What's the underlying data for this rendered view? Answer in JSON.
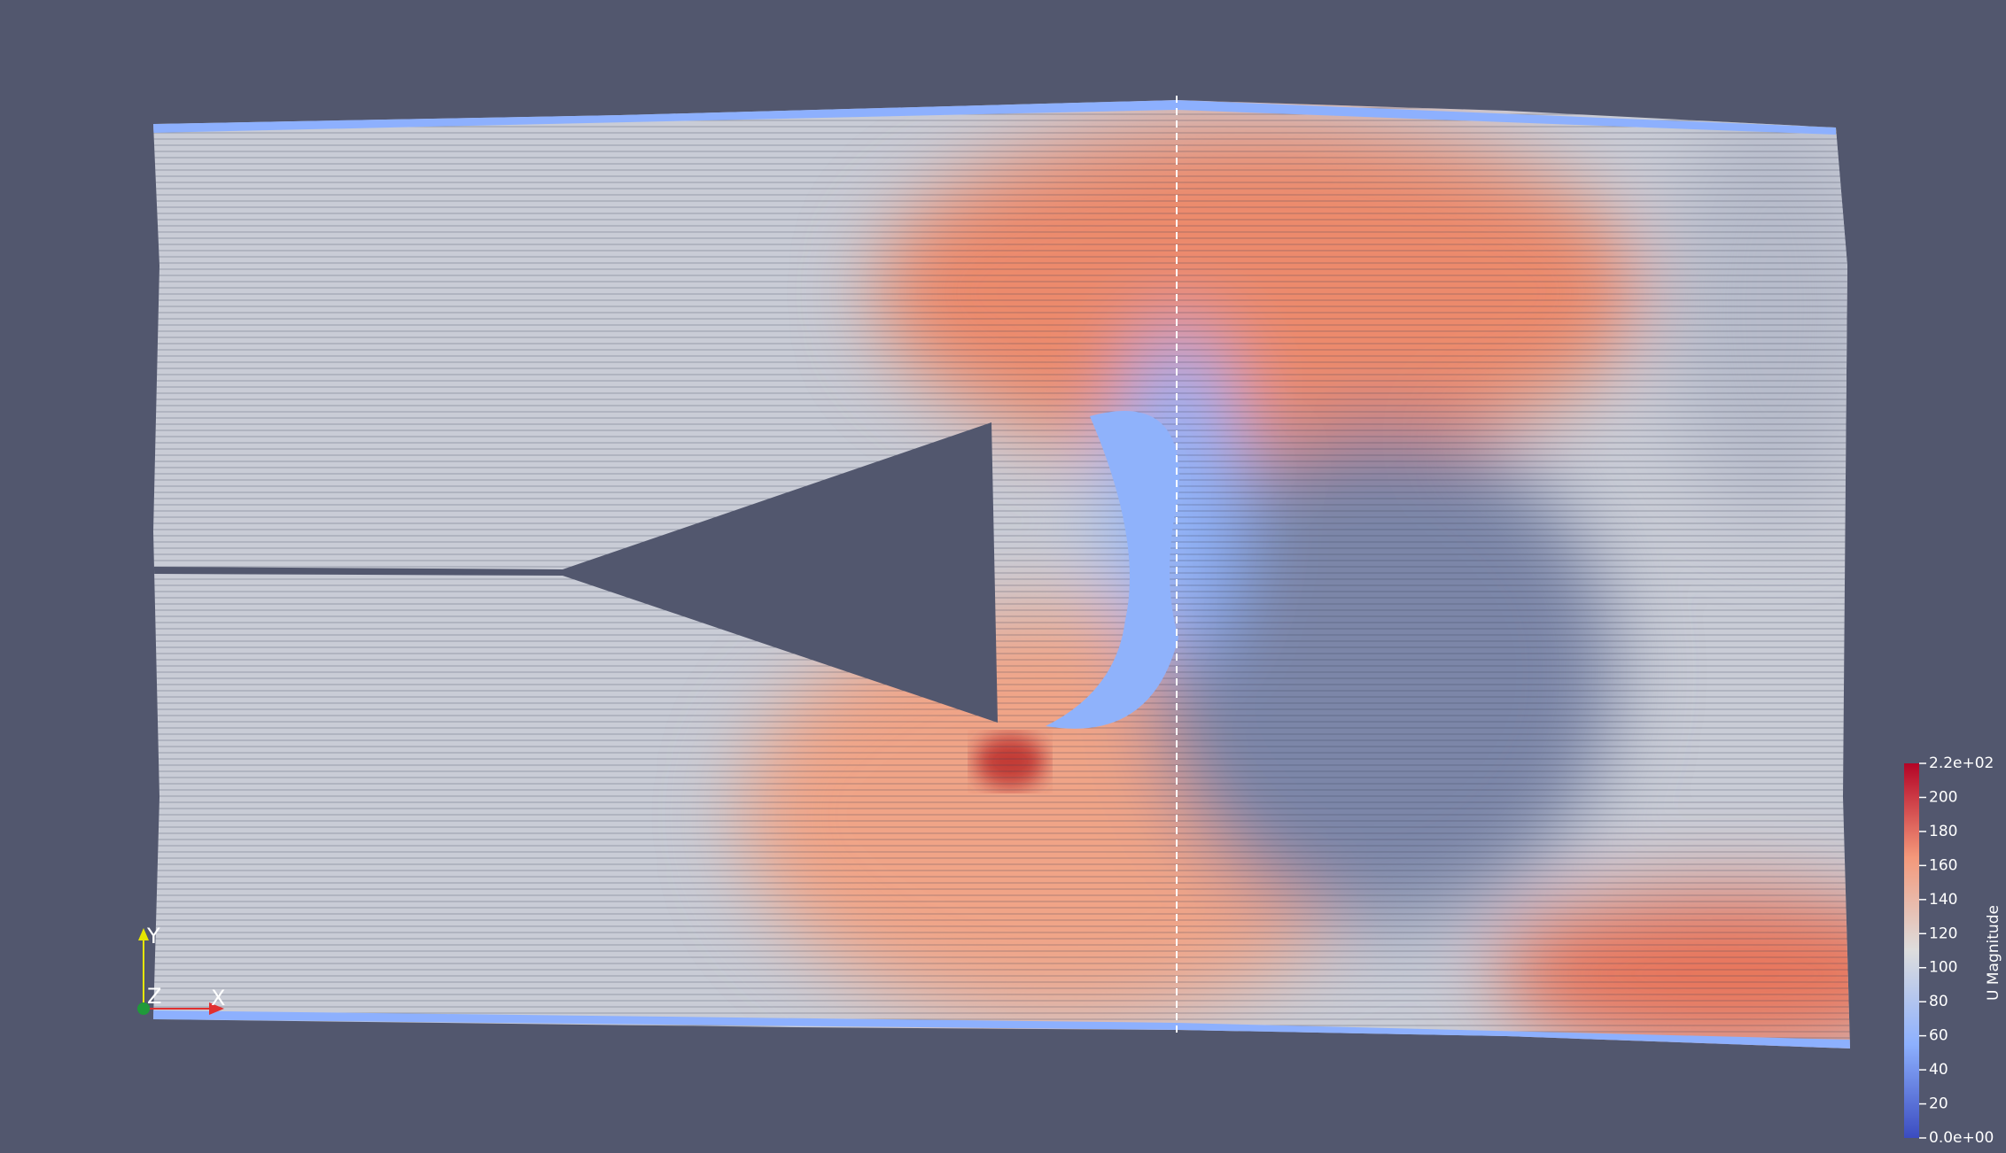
{
  "colorbar": {
    "title": "U Magnitude",
    "range": [
      0,
      220
    ],
    "ticks": [
      {
        "value": 220,
        "label": "2.2e+02"
      },
      200,
      180,
      160,
      140,
      120,
      100,
      80,
      60,
      40,
      20,
      {
        "value": 0,
        "label": "0.0e+00"
      }
    ]
  },
  "axes": {
    "x": "X",
    "y": "Y",
    "z": "Z"
  }
}
